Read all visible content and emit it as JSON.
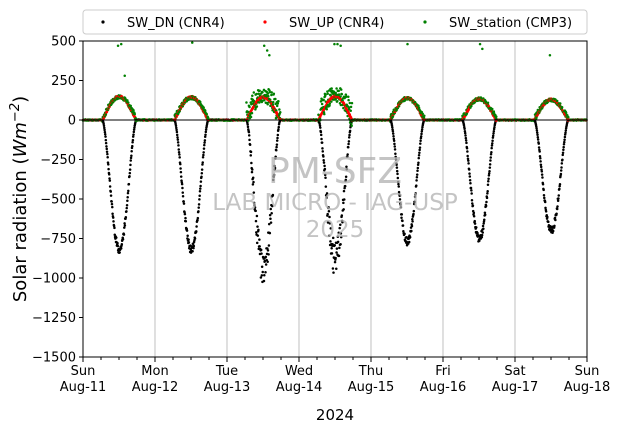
{
  "chart_data": {
    "type": "scatter",
    "ylabel": "Solar radiation (",
    "ylabel_unit": "Wm",
    "ylabel_exp": "−2",
    "ylabel_close": ")",
    "xlabel": "2024",
    "ylim": [
      -1500,
      500
    ],
    "yticks": [
      500,
      250,
      0,
      -250,
      -500,
      -750,
      -1000,
      -1250,
      -1500
    ],
    "xlim": [
      0,
      7
    ],
    "xticks": [
      {
        "day": "Sun",
        "date": "Aug-11"
      },
      {
        "day": "Mon",
        "date": "Aug-12"
      },
      {
        "day": "Tue",
        "date": "Aug-13"
      },
      {
        "day": "Wed",
        "date": "Aug-14"
      },
      {
        "day": "Thu",
        "date": "Aug-15"
      },
      {
        "day": "Fri",
        "date": "Aug-16"
      },
      {
        "day": "Sat",
        "date": "Aug-17"
      },
      {
        "day": "Sun",
        "date": "Aug-18"
      }
    ],
    "grid": "x",
    "legend_placement": "top",
    "watermark": [
      "PM-SFZ",
      "LAB MICRO - IAG-USP",
      "2025"
    ],
    "series": [
      {
        "name": "SW_DN (CNR4)",
        "color": "#000000",
        "daily_min": [
          -820,
          -820,
          -930,
          -880,
          -770,
          -750,
          -700
        ]
      },
      {
        "name": "SW_UP (CNR4)",
        "color": "#ff0000",
        "daily_max": [
          150,
          145,
          145,
          150,
          140,
          135,
          130
        ]
      },
      {
        "name": "SW_station (CMP3)",
        "color": "#008000",
        "daily_outliers": [
          [
            470,
            480,
            280
          ],
          [
            490
          ],
          [
            470,
            440,
            410
          ],
          [
            480,
            480,
            470
          ],
          [
            480
          ],
          [
            480,
            450
          ],
          [
            410
          ]
        ]
      }
    ]
  }
}
